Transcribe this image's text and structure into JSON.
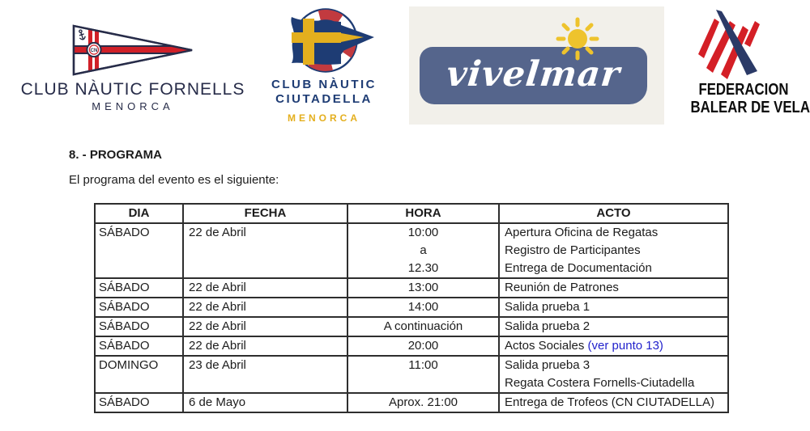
{
  "colors": {
    "text": "#1c1c1c",
    "link": "#2222cc",
    "table_border": "#2e2e2e",
    "fornells_navy": "#272c49",
    "fornells_red": "#d02028",
    "ciutadella_navy": "#1e3c74",
    "ciutadella_gold": "#e4af1e",
    "ciutadella_red": "#c23a3f",
    "vivelmar_panel": "#55658c",
    "vivelmar_sun": "#eec32d",
    "vivelmar_bg": "#f2f0ea",
    "federacion_red": "#d41f26",
    "federacion_navy": "#2b3a67"
  },
  "logos": {
    "fornells": {
      "name": "CLUB NÀUTIC FORNELLS",
      "place": "MENORCA",
      "monogram": "CN"
    },
    "ciutadella": {
      "line1": "CLUB NÀUTIC",
      "line2": "CIUTADELLA",
      "place": "MENORCA"
    },
    "vivelmar": {
      "wordmark": "vivelmar"
    },
    "federacion": {
      "line1": "FEDERACION",
      "line2": "BALEAR DE VELA"
    }
  },
  "section": {
    "heading": "8. - PROGRAMA",
    "intro": "El programa del evento es el siguiente:"
  },
  "table": {
    "headers": [
      "DIA",
      "FECHA",
      "HORA",
      "ACTO"
    ],
    "rows": [
      {
        "dia": "SÁBADO",
        "fecha": "22 de Abril",
        "hora": [
          "10:00",
          "a",
          "12.30"
        ],
        "acto": [
          [
            {
              "t": "Apertura Oficina de Regatas"
            }
          ],
          [
            {
              "t": "Registro de Participantes"
            }
          ],
          [
            {
              "t": "Entrega de Documentación"
            }
          ]
        ]
      },
      {
        "dia": "SÁBADO",
        "fecha": "22 de Abril",
        "hora": [
          "13:00"
        ],
        "acto": [
          [
            {
              "t": "Reunión de Patrones"
            }
          ]
        ]
      },
      {
        "dia": "SÁBADO",
        "fecha": "22 de Abril",
        "hora": [
          "14:00"
        ],
        "acto": [
          [
            {
              "t": "Salida prueba 1"
            }
          ]
        ]
      },
      {
        "dia": "SÁBADO",
        "fecha": "22 de Abril",
        "hora": [
          "A continuación"
        ],
        "acto": [
          [
            {
              "t": "Salida prueba 2"
            }
          ]
        ]
      },
      {
        "dia": "SÁBADO",
        "fecha": "22 de Abril",
        "hora": [
          "20:00"
        ],
        "acto": [
          [
            {
              "t": "Actos Sociales "
            },
            {
              "t": "(ver punto 13)",
              "link": true
            }
          ]
        ]
      },
      {
        "dia": "DOMINGO",
        "fecha": "23 de Abril",
        "hora": [
          "11:00"
        ],
        "acto": [
          [
            {
              "t": "Salida prueba 3"
            }
          ],
          [
            {
              "t": "Regata Costera Fornells-Ciutadella"
            }
          ]
        ]
      },
      {
        "dia": "SÁBADO",
        "fecha": "6 de Mayo",
        "hora": [
          "Aprox. 21:00"
        ],
        "acto": [
          [
            {
              "t": "Entrega de Trofeos (CN CIUTADELLA)"
            }
          ]
        ]
      }
    ]
  }
}
